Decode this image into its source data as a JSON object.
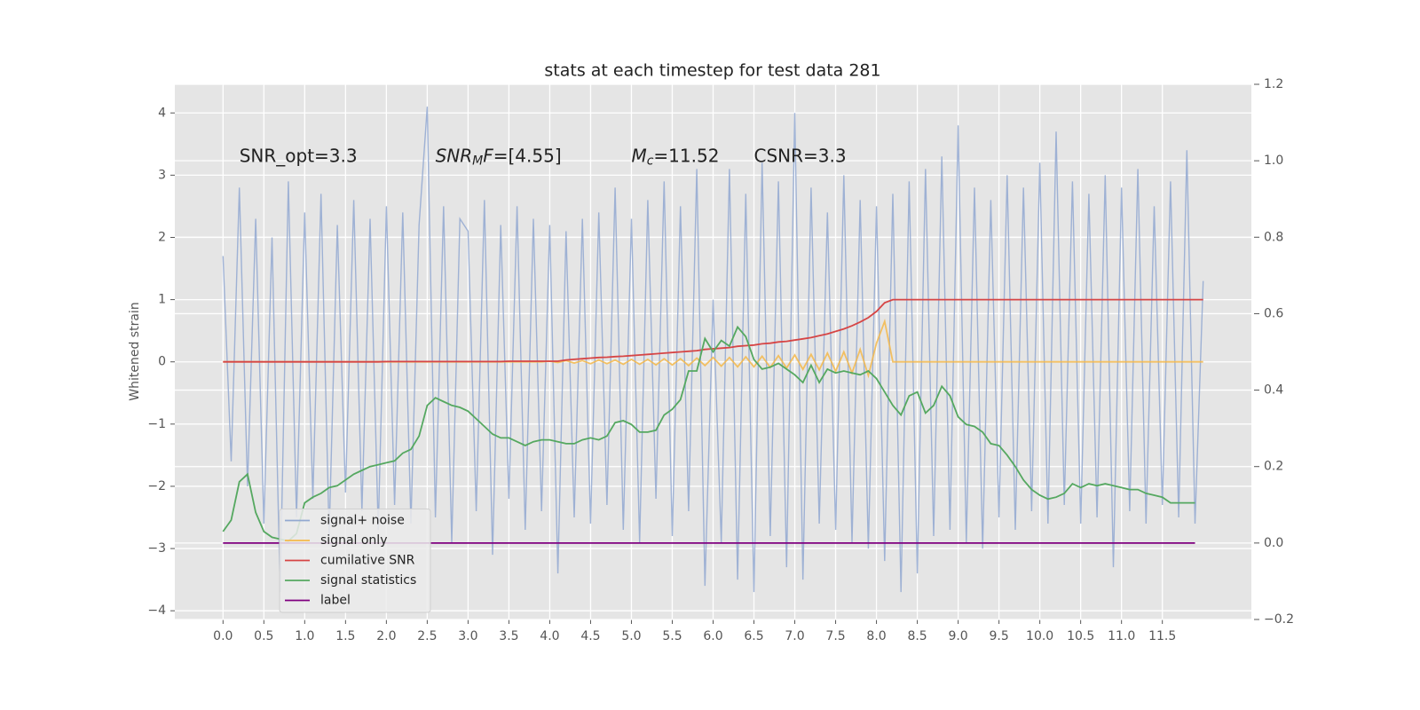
{
  "chart_data": {
    "type": "line",
    "title": "stats at each timestep for test data 281",
    "y_label": "Whitened strain",
    "legend": "lower left",
    "grid": true,
    "xlim": [
      -0.59,
      12.59
    ],
    "ylim": [
      -4.14,
      4.46
    ],
    "y2lim": [
      -0.2,
      1.2
    ],
    "xticks": [
      {
        "value": 0,
        "label": "0.0"
      },
      {
        "value": 0.5,
        "label": "0.5"
      },
      {
        "value": 1,
        "label": "1.0"
      },
      {
        "value": 1.5,
        "label": "1.5"
      },
      {
        "value": 2,
        "label": "2.0"
      },
      {
        "value": 2.5,
        "label": "2.5"
      },
      {
        "value": 3,
        "label": "3.0"
      },
      {
        "value": 3.5,
        "label": "3.5"
      },
      {
        "value": 4,
        "label": "4.0"
      },
      {
        "value": 4.5,
        "label": "4.5"
      },
      {
        "value": 5,
        "label": "5.0"
      },
      {
        "value": 5.5,
        "label": "5.5"
      },
      {
        "value": 6,
        "label": "6.0"
      },
      {
        "value": 6.5,
        "label": "6.5"
      },
      {
        "value": 7,
        "label": "7.0"
      },
      {
        "value": 7.5,
        "label": "7.5"
      },
      {
        "value": 8,
        "label": "8.0"
      },
      {
        "value": 8.5,
        "label": "8.5"
      },
      {
        "value": 9,
        "label": "9.0"
      },
      {
        "value": 9.5,
        "label": "9.5"
      },
      {
        "value": 10,
        "label": "10.0"
      },
      {
        "value": 10.5,
        "label": "10.5"
      },
      {
        "value": 11,
        "label": "11.0"
      },
      {
        "value": 11.5,
        "label": "11.5"
      }
    ],
    "yticks": [
      {
        "value": -4,
        "label": "−4"
      },
      {
        "value": -3,
        "label": "−3"
      },
      {
        "value": -2,
        "label": "−2"
      },
      {
        "value": -1,
        "label": "−1"
      },
      0,
      1,
      2,
      3,
      4
    ],
    "y2ticks": [
      {
        "value": -0.2,
        "label": "−0.2"
      },
      {
        "value": 0,
        "label": "0.0"
      },
      0.2,
      0.4,
      0.6,
      0.8,
      {
        "value": 1,
        "label": "1.0"
      },
      1.2
    ],
    "annotations": [
      {
        "x": 0.2,
        "y": 3.3,
        "parts": [
          {
            "text": "SNR_opt=3.3"
          }
        ]
      },
      {
        "x": 2.6,
        "y": 3.3,
        "parts": [
          {
            "text": "SNR",
            "italic": true
          },
          {
            "text": "M",
            "italic": true,
            "sub": true
          },
          {
            "text": "F",
            "italic": true
          },
          {
            "text": "=[4.55]"
          }
        ]
      },
      {
        "x": 5.0,
        "y": 3.3,
        "parts": [
          {
            "text": "M",
            "italic": true
          },
          {
            "text": "c",
            "italic": true,
            "sub": true
          },
          {
            "text": "=11.52"
          }
        ]
      },
      {
        "x": 6.5,
        "y": 3.3,
        "parts": [
          {
            "text": "CSNR=3.3"
          }
        ]
      }
    ],
    "x": [
      0,
      0.1,
      0.2,
      0.3,
      0.4,
      0.5,
      0.6,
      0.7,
      0.8,
      0.9,
      1,
      1.1,
      1.2,
      1.3,
      1.4,
      1.5,
      1.6,
      1.7,
      1.8,
      1.9,
      2,
      2.1,
      2.2,
      2.3,
      2.4,
      2.5,
      2.6,
      2.7,
      2.8,
      2.9,
      3,
      3.1,
      3.2,
      3.3,
      3.4,
      3.5,
      3.6,
      3.7,
      3.8,
      3.9,
      4,
      4.1,
      4.2,
      4.3,
      4.4,
      4.5,
      4.6,
      4.7,
      4.8,
      4.9,
      5,
      5.1,
      5.2,
      5.3,
      5.4,
      5.5,
      5.6,
      5.7,
      5.8,
      5.9,
      6,
      6.1,
      6.2,
      6.3,
      6.4,
      6.5,
      6.6,
      6.7,
      6.8,
      6.9,
      7,
      7.1,
      7.2,
      7.3,
      7.4,
      7.5,
      7.6,
      7.7,
      7.8,
      7.9,
      8,
      8.1,
      8.2,
      8.3,
      8.4,
      8.5,
      8.6,
      8.7,
      8.8,
      8.9,
      9,
      9.1,
      9.2,
      9.3,
      9.4,
      9.5,
      9.6,
      9.7,
      9.8,
      9.9,
      10,
      10.1,
      10.2,
      10.3,
      10.4,
      10.5,
      10.6,
      10.7,
      10.8,
      10.9,
      11,
      11.1,
      11.2,
      11.3,
      11.4,
      11.5,
      11.6,
      11.7,
      11.8,
      11.9,
      12
    ],
    "series": [
      {
        "name": "signal+ noise",
        "color": "#92a8d1",
        "values": [
          1.7,
          -1.6,
          2.8,
          -2.0,
          2.3,
          -2.6,
          2.0,
          -3.7,
          2.9,
          -2.5,
          2.4,
          -2.2,
          2.7,
          -2.8,
          2.2,
          -2.1,
          2.6,
          -2.4,
          2.3,
          -2.7,
          2.5,
          -2.3,
          2.4,
          -2.6,
          2.2,
          4.1,
          -2.5,
          2.5,
          -2.9,
          2.3,
          2.1,
          -2.4,
          2.6,
          -3.1,
          2.2,
          -2.2,
          2.5,
          -2.7,
          2.3,
          -2.4,
          2.2,
          -3.4,
          2.1,
          -2.5,
          2.3,
          -2.6,
          2.4,
          -2.3,
          2.8,
          -2.7,
          2.3,
          -2.9,
          2.6,
          -2.2,
          2.9,
          -2.8,
          2.5,
          -2.4,
          3.1,
          -3.6,
          1.0,
          -2.9,
          3.1,
          -3.5,
          2.7,
          -3.7,
          3.2,
          -2.8,
          2.9,
          -3.3,
          4.0,
          -3.5,
          2.8,
          -2.6,
          2.4,
          -2.7,
          3.0,
          -2.9,
          2.6,
          -3.0,
          2.5,
          -3.2,
          2.7,
          -3.7,
          2.9,
          -3.4,
          3.1,
          -2.8,
          3.3,
          -2.7,
          3.8,
          -2.9,
          2.8,
          -3.0,
          2.6,
          -2.5,
          3.0,
          -2.7,
          2.8,
          -2.4,
          3.2,
          -2.6,
          3.7,
          -2.3,
          2.9,
          -2.6,
          2.7,
          -2.5,
          3.0,
          -3.3,
          2.8,
          -2.4,
          3.1,
          -2.6,
          2.5,
          -2.3,
          2.9,
          -2.5,
          3.4,
          -2.6,
          1.3
        ]
      },
      {
        "name": "signal only",
        "color": "#f5b94a",
        "values": [
          0,
          0,
          0,
          0,
          0,
          0,
          0,
          0,
          0,
          0,
          0,
          0,
          0,
          0,
          0,
          0,
          0,
          0,
          0,
          0,
          0,
          0,
          0,
          0,
          0,
          0,
          0,
          0,
          0,
          0,
          0,
          0,
          0,
          0,
          0,
          0,
          0,
          0,
          0,
          0,
          0.01,
          -0.01,
          0.02,
          -0.02,
          0.02,
          -0.03,
          0.03,
          -0.03,
          0.03,
          -0.04,
          0.04,
          -0.04,
          0.04,
          -0.05,
          0.05,
          -0.05,
          0.05,
          -0.06,
          0.06,
          -0.06,
          0.07,
          -0.07,
          0.07,
          -0.08,
          0.08,
          -0.08,
          0.09,
          -0.09,
          0.1,
          -0.1,
          0.11,
          -0.12,
          0.12,
          -0.13,
          0.14,
          -0.15,
          0.16,
          -0.18,
          0.2,
          -0.22,
          0.3,
          0.65,
          0,
          0,
          0,
          0,
          0,
          0,
          0,
          0,
          0,
          0,
          0,
          0,
          0,
          0,
          0,
          0,
          0,
          0,
          0,
          0,
          0,
          0,
          0,
          0,
          0,
          0,
          0,
          0,
          0,
          0,
          0,
          0,
          0,
          0,
          0,
          0,
          0,
          0,
          0
        ]
      },
      {
        "name": "cumilative SNR",
        "color": "#d64545",
        "values": [
          0,
          0,
          0,
          0,
          0,
          0,
          0,
          0,
          0,
          0,
          0,
          0,
          0,
          0,
          0,
          0,
          0,
          0,
          0,
          0,
          0.005,
          0.005,
          0.005,
          0.005,
          0.005,
          0.005,
          0.005,
          0.005,
          0.005,
          0.005,
          0.005,
          0.005,
          0.005,
          0.005,
          0.005,
          0.01,
          0.01,
          0.01,
          0.01,
          0.01,
          0.01,
          0.01,
          0.03,
          0.04,
          0.05,
          0.06,
          0.07,
          0.075,
          0.085,
          0.09,
          0.1,
          0.11,
          0.12,
          0.13,
          0.14,
          0.15,
          0.16,
          0.17,
          0.18,
          0.2,
          0.21,
          0.22,
          0.23,
          0.25,
          0.26,
          0.27,
          0.29,
          0.3,
          0.32,
          0.33,
          0.35,
          0.37,
          0.39,
          0.42,
          0.45,
          0.49,
          0.53,
          0.58,
          0.64,
          0.71,
          0.81,
          0.95,
          1,
          1,
          1,
          1,
          1,
          1,
          1,
          1,
          1,
          1,
          1,
          1,
          1,
          1,
          1,
          1,
          1,
          1,
          1,
          1,
          1,
          1,
          1,
          1,
          1,
          1,
          1,
          1,
          1,
          1,
          1,
          1,
          1,
          1,
          1,
          1,
          1,
          1,
          1
        ]
      },
      {
        "name": "signal statistics",
        "color": "#55a860",
        "axis": "y2",
        "values": [
          0.03,
          0.06,
          0.16,
          0.18,
          0.08,
          0.03,
          0.015,
          0.01,
          0.005,
          0.025,
          0.105,
          0.12,
          0.13,
          0.145,
          0.15,
          0.165,
          0.18,
          0.19,
          0.2,
          0.205,
          0.21,
          0.215,
          0.235,
          0.245,
          0.28,
          0.36,
          0.38,
          0.37,
          0.36,
          0.355,
          0.345,
          0.325,
          0.305,
          0.285,
          0.275,
          0.275,
          0.265,
          0.255,
          0.265,
          0.27,
          0.27,
          0.265,
          0.26,
          0.26,
          0.27,
          0.275,
          0.27,
          0.28,
          0.315,
          0.32,
          0.31,
          0.29,
          0.29,
          0.295,
          0.335,
          0.35,
          0.375,
          0.45,
          0.45,
          0.535,
          0.5,
          0.53,
          0.515,
          0.565,
          0.54,
          0.48,
          0.455,
          0.46,
          0.47,
          0.455,
          0.44,
          0.42,
          0.465,
          0.42,
          0.455,
          0.445,
          0.45,
          0.445,
          0.44,
          0.45,
          0.43,
          0.395,
          0.36,
          0.335,
          0.385,
          0.395,
          0.34,
          0.36,
          0.41,
          0.385,
          0.33,
          0.31,
          0.305,
          0.29,
          0.26,
          0.255,
          0.23,
          0.2,
          0.165,
          0.14,
          0.125,
          0.115,
          0.12,
          0.13,
          0.155,
          0.145,
          0.155,
          0.15,
          0.155,
          0.15,
          0.145,
          0.14,
          0.14,
          0.13,
          0.125,
          0.12,
          0.105,
          0.105,
          0.105,
          0.105,
          null
        ]
      },
      {
        "name": "label",
        "color": "#800080",
        "axis": "y2",
        "values": [
          0,
          0,
          0,
          0,
          0,
          0,
          0,
          0,
          0,
          0,
          0,
          0,
          0,
          0,
          0,
          0,
          0,
          0,
          0,
          0,
          0,
          0,
          0,
          0,
          0,
          0,
          0,
          0,
          0,
          0,
          0,
          0,
          0,
          0,
          0,
          0,
          0,
          0,
          0,
          0,
          0,
          0,
          0,
          0,
          0,
          0,
          0,
          0,
          0,
          0,
          0,
          0,
          0,
          0,
          0,
          0,
          0,
          0,
          0,
          0,
          0,
          0,
          0,
          0,
          0,
          0,
          0,
          0,
          0,
          0,
          0,
          0,
          0,
          0,
          0,
          0,
          0,
          0,
          0,
          0,
          0,
          0,
          0,
          0,
          0,
          0,
          0,
          0,
          0,
          0,
          0,
          0,
          0,
          0,
          0,
          0,
          0,
          0,
          0,
          0,
          0,
          0,
          0,
          0,
          0,
          0,
          0,
          0,
          0,
          0,
          0,
          0,
          0,
          0,
          0,
          0,
          0,
          0,
          0,
          0,
          null
        ]
      }
    ]
  }
}
